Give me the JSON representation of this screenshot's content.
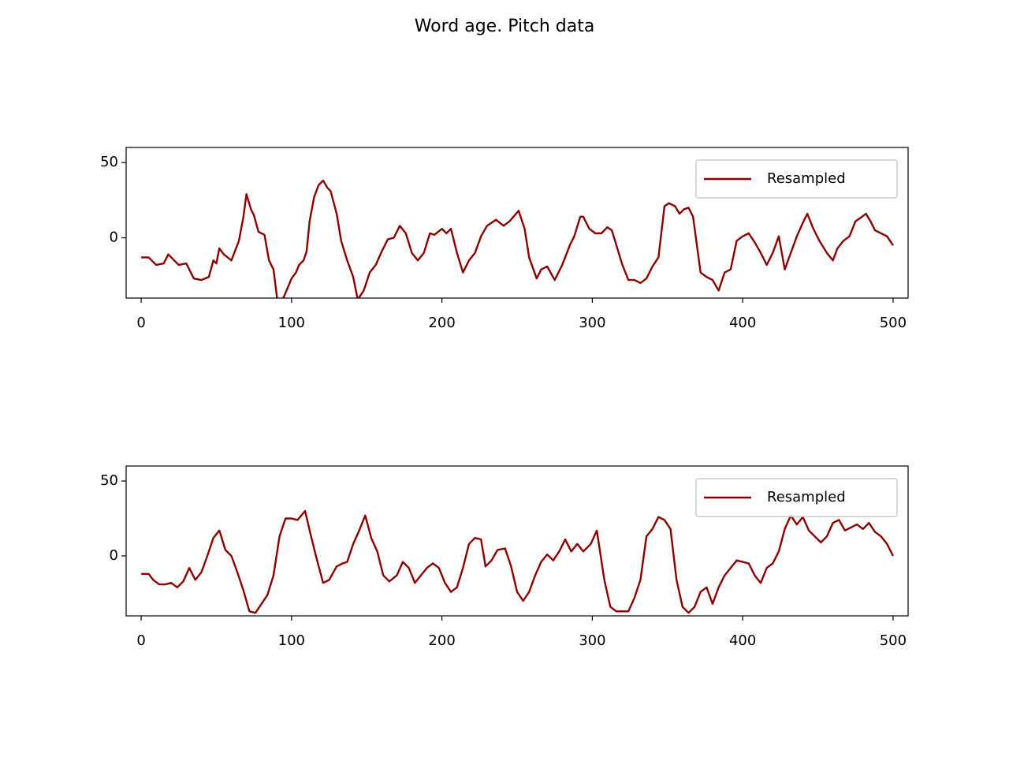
{
  "title": "Word age. Pitch data",
  "chart_data": [
    {
      "type": "line",
      "xlim": [
        -10,
        510
      ],
      "ylim": [
        -40,
        60
      ],
      "xticks": [
        0,
        100,
        200,
        300,
        400,
        500
      ],
      "yticks": [
        0,
        50
      ],
      "legend": "upper right",
      "series": [
        {
          "name": "Resampled",
          "color": "#8b0000",
          "x": [
            0,
            5,
            10,
            15,
            18,
            20,
            25,
            30,
            35,
            40,
            45,
            48,
            50,
            52,
            55,
            60,
            65,
            68,
            70,
            73,
            75,
            78,
            82,
            85,
            88,
            91,
            95,
            100,
            103,
            105,
            108,
            110,
            112,
            115,
            118,
            121,
            124,
            126,
            130,
            133,
            137,
            141,
            144,
            148,
            152,
            156,
            160,
            164,
            168,
            172,
            176,
            180,
            184,
            188,
            192,
            195,
            200,
            203,
            206,
            210,
            214,
            218,
            222,
            226,
            230,
            236,
            241,
            245,
            251,
            255,
            258,
            263,
            266,
            270,
            275,
            280,
            285,
            288,
            292,
            294,
            298,
            302,
            306,
            310,
            313,
            320,
            324,
            328,
            332,
            336,
            340,
            344,
            348,
            351,
            355,
            358,
            361,
            364,
            367,
            372,
            376,
            380,
            384,
            388,
            392,
            396,
            400,
            404,
            408,
            412,
            416,
            420,
            424,
            428,
            432,
            436,
            440,
            443,
            447,
            451,
            456,
            460,
            463,
            467,
            471,
            475,
            478,
            482,
            485,
            488,
            492,
            496,
            500
          ],
          "values": [
            -13,
            -13,
            -18,
            -17,
            -11,
            -13,
            -18,
            -17,
            -27,
            -28,
            -26,
            -15,
            -17,
            -7,
            -11,
            -15,
            -2,
            14,
            29,
            19,
            15,
            4,
            2,
            -15,
            -21,
            -45,
            -39,
            -27,
            -23,
            -18,
            -15,
            -9,
            11,
            27,
            35,
            38,
            33,
            31,
            16,
            -2,
            -15,
            -26,
            -41,
            -35,
            -23,
            -18,
            -9,
            -1,
            0,
            8,
            3,
            -10,
            -15,
            -10,
            3,
            2,
            6,
            3,
            6,
            -10,
            -23,
            -15,
            -10,
            1,
            8,
            12,
            8,
            11,
            18,
            6,
            -13,
            -27,
            -21,
            -19,
            -28,
            -18,
            -5,
            1,
            14,
            14,
            6,
            3,
            3,
            7,
            5,
            -18,
            -28,
            -28,
            -30,
            -27,
            -19,
            -13,
            21,
            23,
            21,
            16,
            19,
            20,
            14,
            -23,
            -26,
            -28,
            -35,
            -23,
            -21,
            -2,
            1,
            3,
            -3,
            -10,
            -18,
            -10,
            1,
            -21,
            -10,
            1,
            10,
            16,
            6,
            -2,
            -10,
            -15,
            -7,
            -2,
            1,
            11,
            13,
            16,
            11,
            5,
            3,
            1,
            -5
          ]
        }
      ]
    },
    {
      "type": "line",
      "xlim": [
        -10,
        510
      ],
      "ylim": [
        -40,
        60
      ],
      "xticks": [
        0,
        100,
        200,
        300,
        400,
        500
      ],
      "yticks": [
        0,
        50
      ],
      "legend": "upper right",
      "series": [
        {
          "name": "Resampled",
          "color": "#8b0000",
          "x": [
            0,
            5,
            8,
            12,
            16,
            20,
            24,
            28,
            32,
            36,
            40,
            44,
            48,
            52,
            56,
            60,
            64,
            68,
            72,
            76,
            80,
            84,
            88,
            92,
            96,
            100,
            104,
            109,
            113,
            117,
            121,
            125,
            130,
            134,
            137,
            141,
            145,
            149,
            153,
            157,
            161,
            165,
            170,
            174,
            178,
            182,
            186,
            190,
            194,
            198,
            202,
            206,
            210,
            214,
            218,
            222,
            226,
            229,
            233,
            237,
            242,
            246,
            250,
            254,
            258,
            262,
            266,
            270,
            274,
            278,
            282,
            286,
            290,
            294,
            299,
            303,
            308,
            312,
            316,
            320,
            324,
            328,
            332,
            336,
            340,
            344,
            348,
            352,
            356,
            360,
            364,
            368,
            372,
            376,
            380,
            384,
            388,
            392,
            396,
            400,
            404,
            408,
            412,
            416,
            420,
            424,
            428,
            432,
            436,
            440,
            444,
            448,
            452,
            456,
            460,
            464,
            468,
            472,
            476,
            480,
            484,
            488,
            492,
            496,
            500
          ],
          "values": [
            -12,
            -12,
            -16,
            -19,
            -19,
            -18,
            -21,
            -17,
            -8,
            -16,
            -11,
            0,
            12,
            17,
            4,
            0,
            -11,
            -23,
            -37,
            -38,
            -32,
            -26,
            -13,
            13,
            25,
            25,
            24,
            30,
            13,
            -3,
            -18,
            -16,
            -7,
            -5,
            -4,
            8,
            17,
            27,
            12,
            3,
            -13,
            -17,
            -13,
            -4,
            -8,
            -18,
            -13,
            -8,
            -5,
            -8,
            -18,
            -24,
            -21,
            -8,
            8,
            12,
            11,
            -7,
            -3,
            4,
            5,
            -7,
            -24,
            -30,
            -24,
            -13,
            -4,
            1,
            -3,
            3,
            11,
            3,
            8,
            3,
            8,
            17,
            -16,
            -34,
            -37,
            -37,
            -37,
            -28,
            -16,
            13,
            18,
            26,
            24,
            18,
            -16,
            -34,
            -38,
            -34,
            -24,
            -21,
            -32,
            -21,
            -13,
            -8,
            -3,
            -4,
            -5,
            -13,
            -18,
            -8,
            -5,
            3,
            18,
            27,
            21,
            26,
            17,
            13,
            9,
            13,
            22,
            24,
            17,
            19,
            21,
            18,
            22,
            16,
            13,
            8,
            0
          ]
        }
      ]
    }
  ]
}
